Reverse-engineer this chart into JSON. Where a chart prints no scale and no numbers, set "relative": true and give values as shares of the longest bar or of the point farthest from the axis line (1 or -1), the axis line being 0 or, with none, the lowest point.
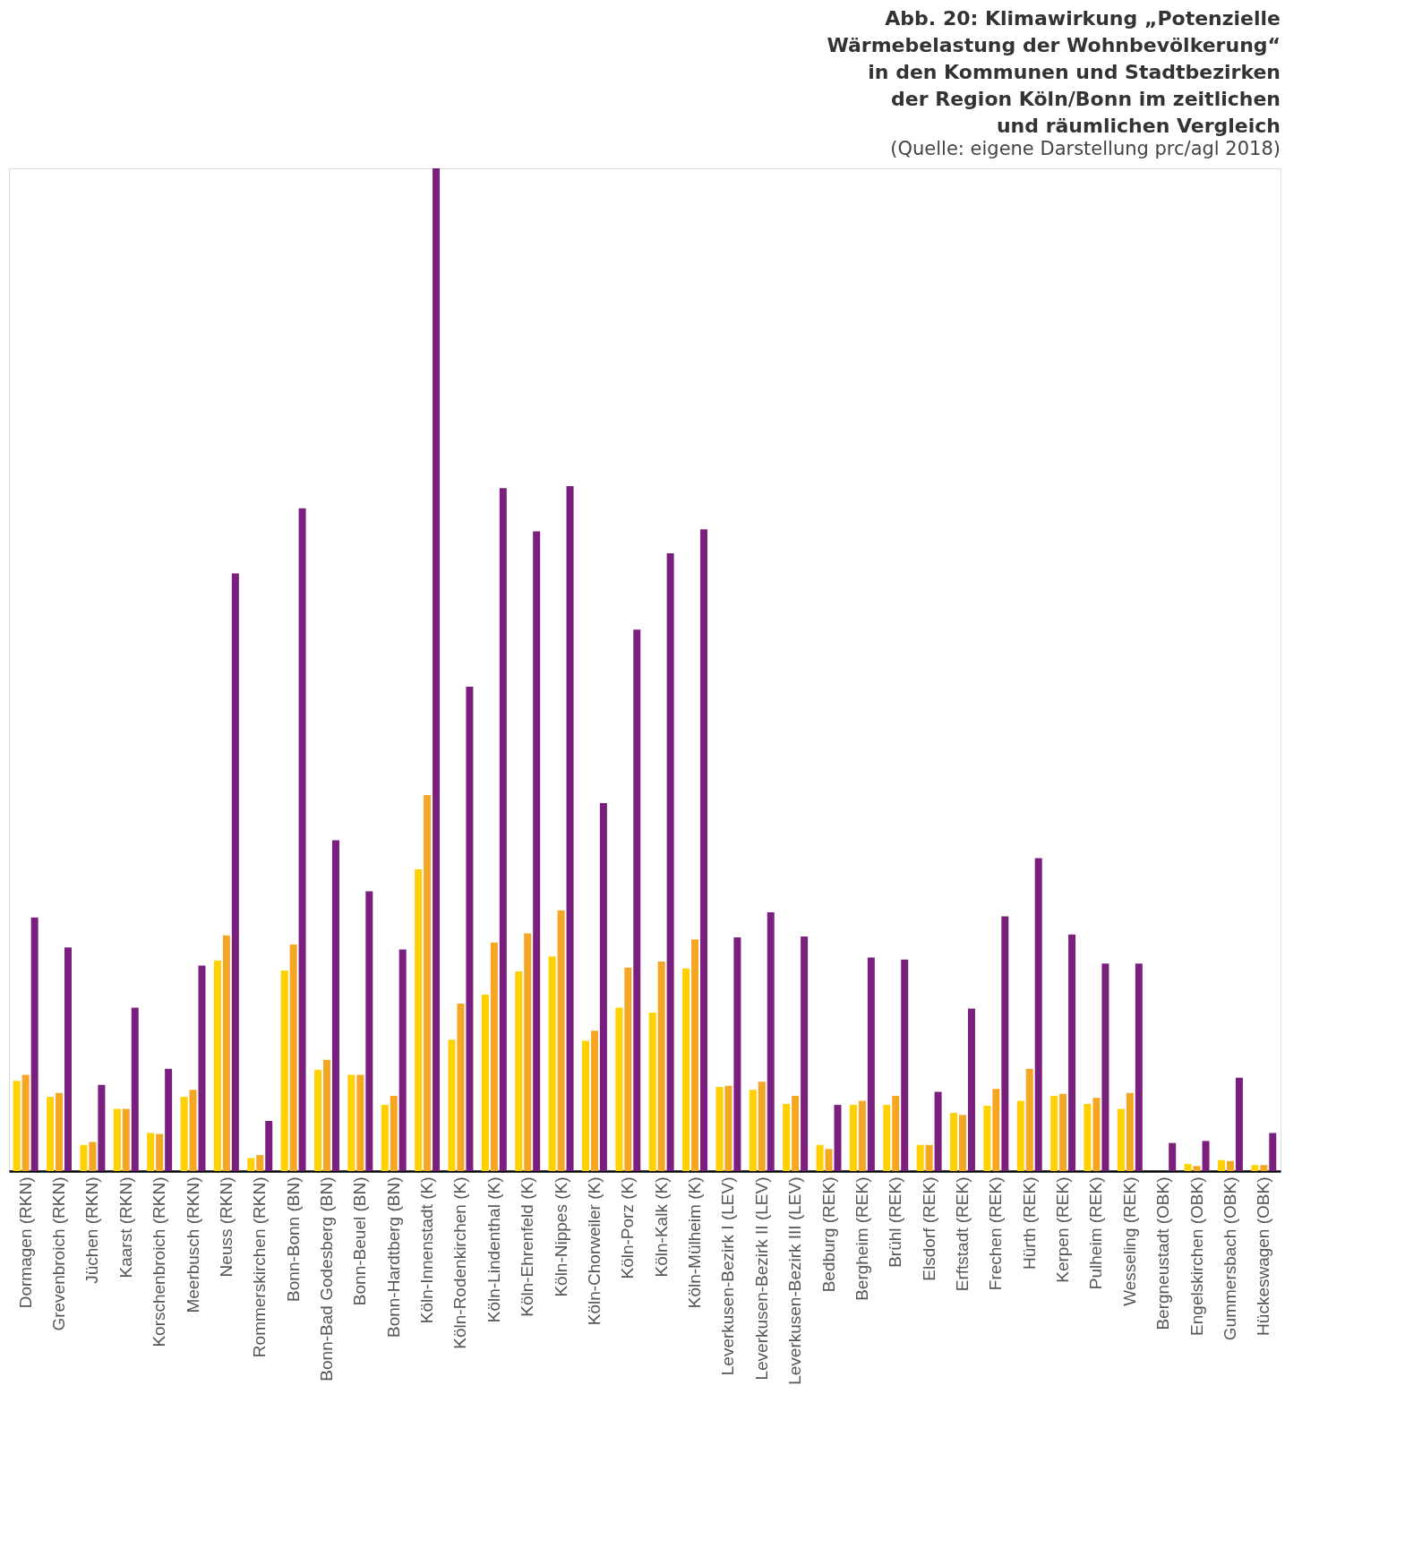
{
  "chart_data": {
    "type": "bar",
    "relative": true,
    "grid": false,
    "legend": false,
    "title": "Abb. 20: Klimawirkung „Potenzielle Wärmebelastung der Wohnbevölkerung“ in den Kommunen und Stadtbezirken der Region Köln/Bonn im zeitlichen und räumlichen Vergleich",
    "annotations": [
      "(Quelle: eigene Darstellung prc/agl 2018)"
    ],
    "categories": [
      "Dormagen (RKN)",
      "Grevenbroich (RKN)",
      "Jüchen (RKN)",
      "Kaarst (RKN)",
      "Korschenbroich (RKN)",
      "Meerbusch (RKN)",
      "Neuss (RKN)",
      "Rommerskirchen (RKN)",
      "Bonn-Bonn (BN)",
      "Bonn-Bad Godesberg (BN)",
      "Bonn-Beuel (BN)",
      "Bonn-Hardtberg (BN)",
      "Köln-Innenstadt (K)",
      "Köln-Rodenkirchen (K)",
      "Köln-Lindenthal (K)",
      "Köln-Ehrenfeld (K)",
      "Köln-Nippes (K)",
      "Köln-Chorweiler (K)",
      "Köln-Porz (K)",
      "Köln-Kalk (K)",
      "Köln-Mülheim (K)",
      "Leverkusen-Bezirk I (LEV)",
      "Leverkusen-Bezirk II (LEV)",
      "Leverkusen-Bezirk III (LEV)",
      "Bedburg (REK)",
      "Bergheim (REK)",
      "Brühl (REK)",
      "Elsdorf (REK)",
      "Erftstadt (REK)",
      "Frechen (REK)",
      "Hürth (REK)",
      "Kerpen (REK)",
      "Pulheim (REK)",
      "Wesseling (REK)",
      "Bergneustadt (OBK)",
      "Engelskirchen (OBK)",
      "Gummersbach (OBK)",
      "Hückeswagen (OBK)"
    ],
    "series": [
      {
        "color": "#ffd100",
        "values": [
          0.09,
          0.074,
          0.026,
          0.062,
          0.038,
          0.074,
          0.21,
          0.013,
          0.2,
          0.101,
          0.096,
          0.066,
          0.301,
          0.131,
          0.176,
          0.199,
          0.214,
          0.13,
          0.163,
          0.158,
          0.202,
          0.084,
          0.081,
          0.067,
          0.026,
          0.066,
          0.066,
          0.026,
          0.058,
          0.065,
          0.07,
          0.075,
          0.067,
          0.062,
          0,
          0.007,
          0.011,
          0.006
        ]
      },
      {
        "color": "#f5a623",
        "values": [
          0.096,
          0.078,
          0.029,
          0.062,
          0.037,
          0.081,
          0.235,
          0.016,
          0.226,
          0.111,
          0.096,
          0.075,
          0.375,
          0.167,
          0.228,
          0.237,
          0.26,
          0.14,
          0.203,
          0.209,
          0.231,
          0.085,
          0.089,
          0.075,
          0.022,
          0.07,
          0.075,
          0.026,
          0.056,
          0.082,
          0.102,
          0.077,
          0.073,
          0.078,
          0,
          0.005,
          0.01,
          0.006
        ]
      },
      {
        "color": "#7b1f7e",
        "values": [
          0.253,
          0.223,
          0.086,
          0.163,
          0.102,
          0.205,
          0.596,
          0.05,
          0.661,
          0.33,
          0.279,
          0.221,
          1,
          0.483,
          0.681,
          0.638,
          0.683,
          0.367,
          0.54,
          0.616,
          0.64,
          0.233,
          0.258,
          0.234,
          0.066,
          0.213,
          0.211,
          0.079,
          0.162,
          0.254,
          0.312,
          0.236,
          0.207,
          0.207,
          0.028,
          0.03,
          0.093,
          0.038
        ]
      }
    ]
  }
}
